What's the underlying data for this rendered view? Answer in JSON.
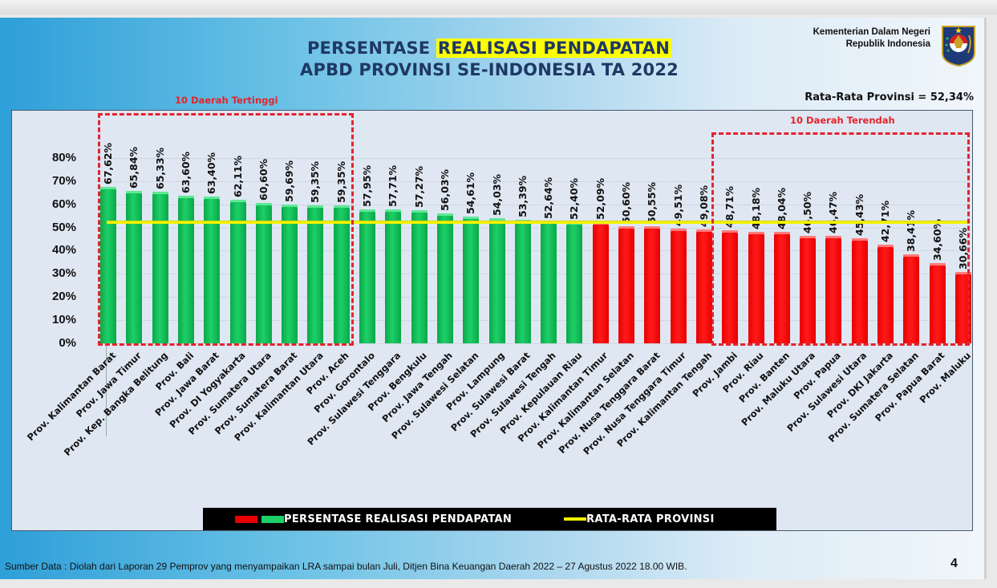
{
  "header": {
    "title_part1": "PERSENTASE ",
    "title_highlight": "REALISASI PENDAPATAN",
    "title_line2": "APBD PROVINSI SE-INDONESIA TA 2022",
    "ministry_line1": "Kementerian Dalam Negeri",
    "ministry_line2": "Republik Indonesia",
    "average_label": "Rata-Rata Provinsi = 52,34%"
  },
  "annotations": {
    "top10": "10 Daerah Tertinggi",
    "bottom10": "10 Daerah Terendah"
  },
  "legend": {
    "series_label": "PERSENTASE REALISASI PENDAPATAN",
    "average_label": "RATA-RATA PROVINSI"
  },
  "footer": {
    "source": "Sumber Data : Diolah dari Laporan 29 Pemprov yang menyampaikan LRA sampai bulan Juli, Ditjen Bina Keuangan Daerah 2022 – 27 Agustus 2022  18.00 WIB.",
    "page_number": "4"
  },
  "colors": {
    "above_average": "#1dd068",
    "below_average": "#ff1a1a",
    "average_line": "#f2f200",
    "title": "#1f3864",
    "highlight": "#ffff00",
    "annotation": "#e3242b"
  },
  "chart_data": {
    "type": "bar",
    "title": "PERSENTASE REALISASI PENDAPATAN APBD PROVINSI SE-INDONESIA TA 2022",
    "xlabel": "",
    "ylabel": "",
    "ylim": [
      0,
      80
    ],
    "yticks": [
      "0%",
      "10%",
      "20%",
      "30%",
      "40%",
      "50%",
      "60%",
      "70%",
      "80%"
    ],
    "grid": true,
    "legend_position": "bottom",
    "average": 52.34,
    "average_label": "RATA-RATA PROVINSI",
    "categories": [
      "Prov. Kalimantan Barat",
      "Prov. Jawa Timur",
      "Prov. Kep. Bangka Belitung",
      "Prov. Bali",
      "Prov. Jawa Barat",
      "Prov. DI Yogyakarta",
      "Prov. Sumatera Utara",
      "Prov. Sumatera Barat",
      "Prov. Kalimantan Utara",
      "Prov. Aceh",
      "Prov. Gorontalo",
      "Prov. Sulawesi Tenggara",
      "Prov. Bengkulu",
      "Prov. Jawa Tengah",
      "Prov. Sulawesi Selatan",
      "Prov. Lampung",
      "Prov. Sulawesi Barat",
      "Prov. Sulawesi Tengah",
      "Prov. Kepulauan Riau",
      "Prov. Kalimantan Timur",
      "Prov. Kalimantan Selatan",
      "Prov. Nusa Tenggara Barat",
      "Prov. Nusa Tenggara Timur",
      "Prov. Kalimantan Tengah",
      "Prov. Jambi",
      "Prov. Riau",
      "Prov. Banten",
      "Prov. Maluku Utara",
      "Prov. Papua",
      "Prov. Sulawesi Utara",
      "Prov. DKI Jakarta",
      "Prov. Sumatera Selatan",
      "Prov. Papua Barat",
      "Prov. Maluku"
    ],
    "values": [
      67.62,
      65.84,
      65.33,
      63.6,
      63.4,
      62.11,
      60.6,
      59.69,
      59.35,
      59.35,
      57.95,
      57.71,
      57.27,
      56.03,
      54.61,
      54.03,
      53.39,
      52.64,
      52.4,
      52.09,
      50.6,
      50.55,
      49.51,
      49.08,
      48.71,
      48.18,
      48.04,
      46.5,
      46.47,
      45.43,
      42.71,
      38.41,
      34.6,
      30.66
    ],
    "value_labels": [
      "67,62%",
      "65,84%",
      "65,33%",
      "63,60%",
      "63,40%",
      "62,11%",
      "60,60%",
      "59,69%",
      "59,35%",
      "59,35%",
      "57,95%",
      "57,71%",
      "57,27%",
      "56,03%",
      "54,61%",
      "54,03%",
      "53,39%",
      "52,64%",
      "52,40%",
      "52,09%",
      "50,60%",
      "50,55%",
      "49,51%",
      "49,08%",
      "48,71%",
      "48,18%",
      "48,04%",
      "46,50%",
      "46,47%",
      "45,43%",
      "42,71%",
      "38,41%",
      "34,60%",
      "30,66%"
    ],
    "bar_colors": [
      "green",
      "green",
      "green",
      "green",
      "green",
      "green",
      "green",
      "green",
      "green",
      "green",
      "green",
      "green",
      "green",
      "green",
      "green",
      "green",
      "green",
      "green",
      "green",
      "red",
      "red",
      "red",
      "red",
      "red",
      "red",
      "red",
      "red",
      "red",
      "red",
      "red",
      "red",
      "red",
      "red",
      "red"
    ],
    "series": [
      {
        "name": "PERSENTASE REALISASI PENDAPATAN",
        "type": "bar"
      },
      {
        "name": "RATA-RATA PROVINSI",
        "type": "line",
        "value": 52.34
      }
    ]
  }
}
